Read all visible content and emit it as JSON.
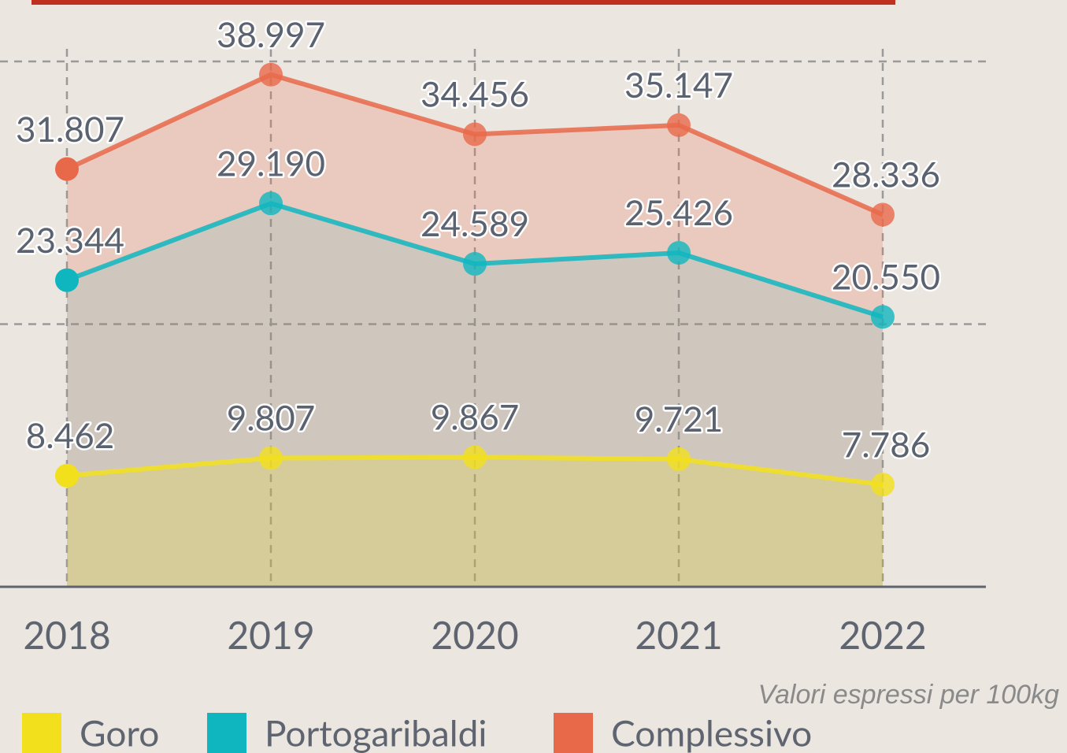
{
  "chart_data": {
    "type": "area",
    "note": "Valori espressi per 100kg",
    "categories": [
      "2018",
      "2019",
      "2020",
      "2021",
      "2022"
    ],
    "ylim": [
      0,
      40000
    ],
    "yticks": [
      0,
      20000,
      40000
    ],
    "grid": true,
    "series": [
      {
        "name": "Goro",
        "color": "#f2e01c",
        "values": [
          8462,
          9807,
          9867,
          9721,
          7786
        ],
        "value_labels": [
          "8.462",
          "9.807",
          "9.867",
          "9.721",
          "7.786"
        ]
      },
      {
        "name": "Portogaribaldi",
        "color": "#10b6bf",
        "values": [
          23344,
          29190,
          24589,
          25426,
          20550
        ],
        "value_labels": [
          "23.344",
          "29.190",
          "24.589",
          "25.426",
          "20.550"
        ]
      },
      {
        "name": "Complessivo",
        "color": "#e8694a",
        "values": [
          31807,
          38997,
          34456,
          35147,
          28336
        ],
        "value_labels": [
          "31.807",
          "38.997",
          "34.456",
          "35.147",
          "28.336"
        ]
      }
    ]
  }
}
